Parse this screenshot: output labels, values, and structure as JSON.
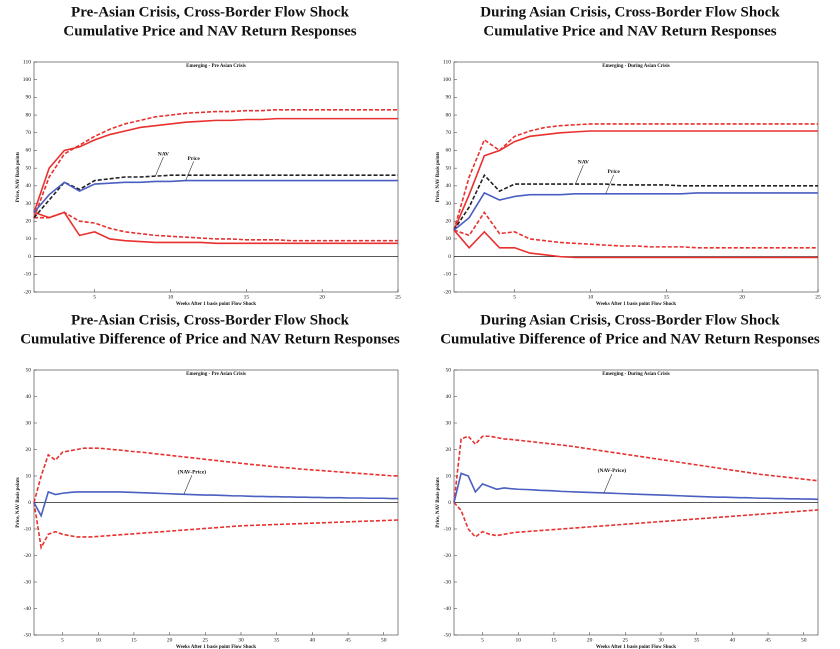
{
  "chart_data": [
    {
      "type": "line",
      "title": "Pre-Asian Crisis, Cross-Border Flow Shock",
      "subtitle": "Cumulative Price and NAV Return Responses",
      "plot_title": "Emerging - Pre Asian Crisis",
      "xlabel": "Weeks After 1 basis point Flow Shock",
      "ylabel": "Price, NAV Basis points",
      "x": [
        1,
        2,
        3,
        4,
        5,
        6,
        7,
        8,
        9,
        10,
        11,
        12,
        13,
        14,
        15,
        16,
        17,
        18,
        19,
        20,
        21,
        22,
        23,
        24,
        25
      ],
      "xlim": [
        1,
        25
      ],
      "xticks": [
        5,
        10,
        15,
        20,
        25
      ],
      "ylim": [
        -20,
        110
      ],
      "yticks": [
        -20,
        -10,
        0,
        10,
        20,
        30,
        40,
        50,
        60,
        70,
        80,
        90,
        100,
        110
      ],
      "series": [
        {
          "color": "#e8312f",
          "dash": false,
          "values": [
            25,
            50,
            60,
            62,
            66,
            69,
            71,
            73,
            74,
            75,
            76,
            76.5,
            77,
            77,
            77.5,
            77.5,
            78,
            78,
            78,
            78,
            78,
            78,
            78,
            78,
            78
          ]
        },
        {
          "color": "#e8312f",
          "dash": false,
          "values": [
            25,
            22,
            25,
            12,
            14,
            10,
            9,
            8.5,
            8,
            8,
            8,
            8,
            7.5,
            7.5,
            7.5,
            7.5,
            7.5,
            7.5,
            7.5,
            7.5,
            7.5,
            7.5,
            7.5,
            7.5,
            7.5
          ]
        },
        {
          "color": "#e8312f",
          "dash": true,
          "values": [
            22,
            45,
            58,
            63,
            68,
            72,
            75,
            77,
            79,
            80,
            81,
            81.5,
            82,
            82,
            82.5,
            82.5,
            83,
            83,
            83,
            83,
            83,
            83,
            83,
            83,
            83
          ]
        },
        {
          "color": "#e8312f",
          "dash": true,
          "values": [
            22,
            22,
            25,
            20,
            19,
            16,
            14,
            13,
            12,
            11.5,
            11,
            10.5,
            10,
            10,
            9.5,
            9.5,
            9.5,
            9,
            9,
            9,
            9,
            9,
            9,
            9,
            9
          ]
        },
        {
          "name": "NAV",
          "color": "#222222",
          "dash": true,
          "values": [
            22,
            32,
            42,
            38,
            43,
            44,
            45,
            45,
            45.5,
            46,
            46,
            46,
            46,
            46,
            46,
            46,
            46,
            46,
            46,
            46,
            46,
            46,
            46,
            46,
            46
          ]
        },
        {
          "name": "Price",
          "color": "#4a5fc1",
          "dash": false,
          "values": [
            25,
            35,
            42,
            37,
            41,
            41.5,
            42,
            42,
            42.5,
            42.5,
            43,
            43,
            43,
            43,
            43,
            43,
            43,
            43,
            43,
            43,
            43,
            43,
            43,
            43,
            43
          ]
        }
      ]
    },
    {
      "type": "line",
      "title": "During Asian Crisis, Cross-Border Flow Shock",
      "subtitle": "Cumulative Price and NAV Return Responses",
      "plot_title": "Emerging - During Asian Crisis",
      "xlabel": "Weeks After 1 basis point Flow Shock",
      "ylabel": "Price, NAV Basis points",
      "x": [
        1,
        2,
        3,
        4,
        5,
        6,
        7,
        8,
        9,
        10,
        11,
        12,
        13,
        14,
        15,
        16,
        17,
        18,
        19,
        20,
        21,
        22,
        23,
        24,
        25
      ],
      "xlim": [
        1,
        25
      ],
      "xticks": [
        5,
        10,
        15,
        20,
        25
      ],
      "ylim": [
        -20,
        110
      ],
      "yticks": [
        -20,
        -10,
        0,
        10,
        20,
        30,
        40,
        50,
        60,
        70,
        80,
        90,
        100,
        110
      ],
      "series": [
        {
          "color": "#e8312f",
          "dash": false,
          "values": [
            15,
            35,
            57,
            60,
            65,
            68,
            69,
            70,
            70.5,
            71,
            71,
            71,
            71,
            71,
            71,
            71,
            71,
            71,
            71,
            71,
            71,
            71,
            71,
            71,
            71
          ]
        },
        {
          "color": "#e8312f",
          "dash": false,
          "values": [
            15,
            5,
            14,
            5,
            5,
            2,
            1,
            0,
            -0.5,
            -0.5,
            -0.5,
            -0.5,
            -0.5,
            -0.5,
            -0.5,
            -0.5,
            -0.5,
            -0.5,
            -0.5,
            -0.5,
            -0.5,
            -0.5,
            -0.5,
            -0.5,
            -0.5
          ]
        },
        {
          "color": "#e8312f",
          "dash": true,
          "values": [
            15,
            45,
            66,
            60,
            68,
            71,
            73,
            74,
            74.5,
            75,
            75,
            75,
            75,
            75,
            75,
            75,
            75,
            75,
            75,
            75,
            75,
            75,
            75,
            75,
            75
          ]
        },
        {
          "color": "#e8312f",
          "dash": true,
          "values": [
            15,
            12,
            25,
            13,
            14,
            10,
            9,
            8,
            7.5,
            7,
            6.5,
            6,
            6,
            5.5,
            5.5,
            5.5,
            5,
            5,
            5,
            5,
            5,
            5,
            5,
            5,
            5
          ]
        },
        {
          "name": "NAV",
          "color": "#222222",
          "dash": true,
          "values": [
            15,
            28,
            46,
            37,
            41,
            41,
            41,
            41,
            41,
            41,
            41,
            40.5,
            40.5,
            40.5,
            40.5,
            40,
            40,
            40,
            40,
            40,
            40,
            40,
            40,
            40,
            40
          ]
        },
        {
          "name": "Price",
          "color": "#4a5fc1",
          "dash": false,
          "values": [
            15,
            22,
            36,
            32,
            34,
            35,
            35,
            35,
            35.5,
            35.5,
            35.5,
            35.5,
            35.5,
            35.5,
            35.5,
            35.5,
            36,
            36,
            36,
            36,
            36,
            36,
            36,
            36,
            36
          ]
        }
      ]
    },
    {
      "type": "line",
      "title": "Pre-Asian Crisis, Cross-Border Flow Shock",
      "subtitle": "Cumulative Difference of Price and NAV Return Responses",
      "plot_title": "Emerging - Pre Asian Crisis",
      "xlabel": "Weeks After 1 basis point Flow Shock",
      "ylabel": "Price, NAV Basis points",
      "x": [
        1,
        2,
        3,
        4,
        5,
        6,
        7,
        8,
        9,
        10,
        11,
        12,
        13,
        14,
        15,
        16,
        17,
        18,
        19,
        20,
        21,
        22,
        23,
        24,
        25,
        26,
        27,
        28,
        29,
        30,
        31,
        32,
        33,
        34,
        35,
        36,
        37,
        38,
        39,
        40,
        41,
        42,
        43,
        44,
        45,
        46,
        47,
        48,
        49,
        50,
        51,
        52
      ],
      "xlim": [
        1,
        52
      ],
      "xticks": [
        5,
        10,
        15,
        20,
        25,
        30,
        35,
        40,
        45,
        50
      ],
      "ylim": [
        -50,
        50
      ],
      "yticks": [
        -50,
        -40,
        -30,
        -20,
        -10,
        0,
        10,
        20,
        30,
        40,
        50
      ],
      "series": [
        {
          "color": "#e8312f",
          "dash": true,
          "values": [
            0,
            10,
            18,
            16,
            19,
            19.5,
            20,
            20.5,
            20.5,
            20.5,
            20.3,
            20,
            19.8,
            19.5,
            19.2,
            19,
            18.7,
            18.4,
            18.1,
            17.8,
            17.5,
            17.2,
            16.9,
            16.6,
            16.3,
            16,
            15.7,
            15.4,
            15.1,
            14.8,
            14.5,
            14.2,
            14,
            13.7,
            13.4,
            13.2,
            13,
            12.7,
            12.5,
            12.3,
            12.1,
            11.9,
            11.7,
            11.5,
            11.3,
            11.1,
            10.9,
            10.7,
            10.5,
            10.3,
            10.1,
            10
          ]
        },
        {
          "color": "#e8312f",
          "dash": true,
          "values": [
            0,
            -17,
            -12,
            -11,
            -12,
            -12.5,
            -13,
            -13,
            -13,
            -12.8,
            -12.6,
            -12.4,
            -12.2,
            -12,
            -11.8,
            -11.6,
            -11.4,
            -11.2,
            -11,
            -10.8,
            -10.6,
            -10.4,
            -10.2,
            -10,
            -9.8,
            -9.6,
            -9.4,
            -9.2,
            -9,
            -8.8,
            -8.7,
            -8.6,
            -8.5,
            -8.4,
            -8.3,
            -8.2,
            -8.1,
            -8,
            -7.9,
            -7.8,
            -7.7,
            -7.6,
            -7.5,
            -7.4,
            -7.3,
            -7.2,
            -7.1,
            -7,
            -6.9,
            -6.8,
            -6.7,
            -6.6
          ]
        },
        {
          "name": "(NAV-Price)",
          "color": "#4a5fc1",
          "dash": false,
          "values": [
            0,
            -5,
            4,
            3,
            3.5,
            3.8,
            4,
            4,
            4,
            4,
            4,
            4,
            4,
            3.9,
            3.8,
            3.7,
            3.6,
            3.5,
            3.4,
            3.3,
            3.2,
            3.1,
            3,
            2.9,
            2.8,
            2.8,
            2.7,
            2.6,
            2.5,
            2.5,
            2.4,
            2.3,
            2.3,
            2.2,
            2.2,
            2.1,
            2.1,
            2,
            2,
            1.9,
            1.9,
            1.8,
            1.8,
            1.8,
            1.7,
            1.7,
            1.7,
            1.6,
            1.6,
            1.6,
            1.5,
            1.5
          ]
        }
      ]
    },
    {
      "type": "line",
      "title": "During Asian Crisis, Cross-Border Flow Shock",
      "subtitle": "Cumulative Difference of Price and NAV Return Responses",
      "plot_title": "Emerging - During Asian Crisis",
      "xlabel": "Weeks After 1 basis point Flow Shock",
      "ylabel": "Price, NAV Basis points",
      "x": [
        1,
        2,
        3,
        4,
        5,
        6,
        7,
        8,
        9,
        10,
        11,
        12,
        13,
        14,
        15,
        16,
        17,
        18,
        19,
        20,
        21,
        22,
        23,
        24,
        25,
        26,
        27,
        28,
        29,
        30,
        31,
        32,
        33,
        34,
        35,
        36,
        37,
        38,
        39,
        40,
        41,
        42,
        43,
        44,
        45,
        46,
        47,
        48,
        49,
        50,
        51,
        52
      ],
      "xlim": [
        1,
        52
      ],
      "xticks": [
        5,
        10,
        15,
        20,
        25,
        30,
        35,
        40,
        45,
        50
      ],
      "ylim": [
        -50,
        50
      ],
      "yticks": [
        -50,
        -40,
        -30,
        -20,
        -10,
        0,
        10,
        20,
        30,
        40,
        50
      ],
      "series": [
        {
          "color": "#e8312f",
          "dash": true,
          "values": [
            0,
            24,
            25,
            22,
            25,
            25,
            24.5,
            24,
            23.8,
            23.5,
            23.2,
            22.9,
            22.6,
            22.3,
            22,
            21.7,
            21.4,
            21,
            20.6,
            20.2,
            19.8,
            19.4,
            19,
            18.6,
            18.2,
            17.8,
            17.4,
            17,
            16.6,
            16.2,
            15.8,
            15.4,
            15,
            14.6,
            14.2,
            13.8,
            13.4,
            13,
            12.6,
            12.2,
            11.8,
            11.4,
            11,
            10.6,
            10.3,
            10,
            9.7,
            9.4,
            9.1,
            8.8,
            8.5,
            8.2
          ]
        },
        {
          "color": "#e8312f",
          "dash": true,
          "values": [
            0,
            -3,
            -10,
            -13,
            -11,
            -12,
            -12.5,
            -12,
            -11.5,
            -11.2,
            -11,
            -10.8,
            -10.6,
            -10.4,
            -10.2,
            -10,
            -9.8,
            -9.6,
            -9.4,
            -9.2,
            -9,
            -8.8,
            -8.6,
            -8.4,
            -8.2,
            -8,
            -7.8,
            -7.6,
            -7.4,
            -7.2,
            -7,
            -6.8,
            -6.6,
            -6.4,
            -6.2,
            -6,
            -5.8,
            -5.6,
            -5.4,
            -5.2,
            -5,
            -4.8,
            -4.6,
            -4.4,
            -4.2,
            -4,
            -3.8,
            -3.6,
            -3.4,
            -3.2,
            -3,
            -2.8
          ]
        },
        {
          "name": "(NAV-Price)",
          "color": "#4a5fc1",
          "dash": false,
          "values": [
            0,
            11,
            10,
            4,
            7,
            6,
            5,
            5.5,
            5.2,
            5,
            4.9,
            4.8,
            4.6,
            4.5,
            4.4,
            4.2,
            4.1,
            4,
            3.9,
            3.8,
            3.7,
            3.6,
            3.5,
            3.4,
            3.3,
            3.2,
            3.1,
            3,
            2.9,
            2.8,
            2.7,
            2.6,
            2.5,
            2.4,
            2.3,
            2.2,
            2.1,
            2,
            2,
            1.9,
            1.8,
            1.8,
            1.7,
            1.6,
            1.6,
            1.5,
            1.5,
            1.4,
            1.4,
            1.3,
            1.3,
            1.2
          ]
        }
      ]
    }
  ]
}
